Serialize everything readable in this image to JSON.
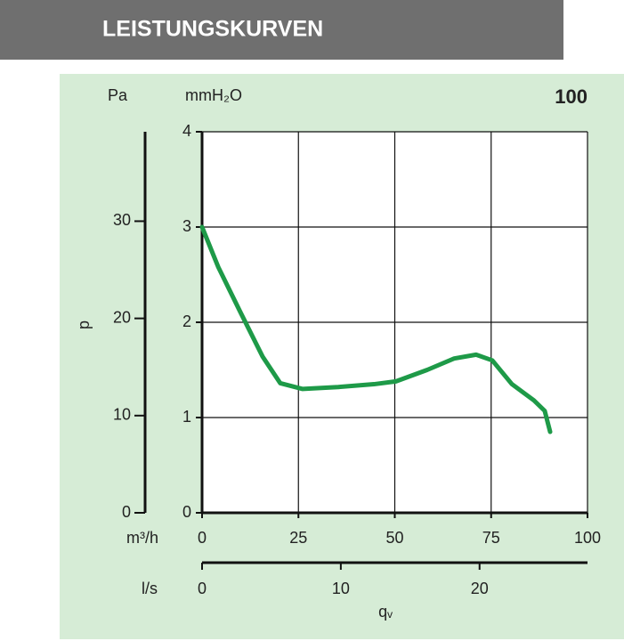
{
  "chart_data": {
    "type": "line",
    "header": "LEISTUNGSKURVEN",
    "title": "100",
    "y_label": "p",
    "x_label": "qᵥ",
    "y_unit": "mmH₂O",
    "y2_unit": "Pa",
    "x_unit": "m³/h",
    "x2_unit": "l/s",
    "x": [
      0,
      4.2,
      9.9,
      15.7,
      20.3,
      26.1,
      35.3,
      44.6,
      50.3,
      58.4,
      65.4,
      71.1,
      75.3,
      80.4,
      86.1,
      88.9,
      90.3
    ],
    "series": [
      {
        "color": "#1e9a48",
        "values": [
          3.0,
          2.58,
          2.11,
          1.64,
          1.36,
          1.3,
          1.32,
          1.35,
          1.38,
          1.5,
          1.62,
          1.66,
          1.6,
          1.35,
          1.18,
          1.07,
          0.85
        ]
      }
    ],
    "xlim": [
      0,
      100
    ],
    "xticks": [
      0,
      25,
      50,
      75,
      100
    ],
    "ylim": [
      0,
      4
    ],
    "yticks": [
      0,
      1,
      2,
      3,
      4
    ],
    "y2lim": [
      0,
      39.2
    ],
    "y2ticks": [
      0,
      10,
      20,
      30
    ],
    "x2lim": [
      0,
      27.78
    ],
    "x2ticks": [
      0,
      10,
      20
    ],
    "grid": true
  }
}
